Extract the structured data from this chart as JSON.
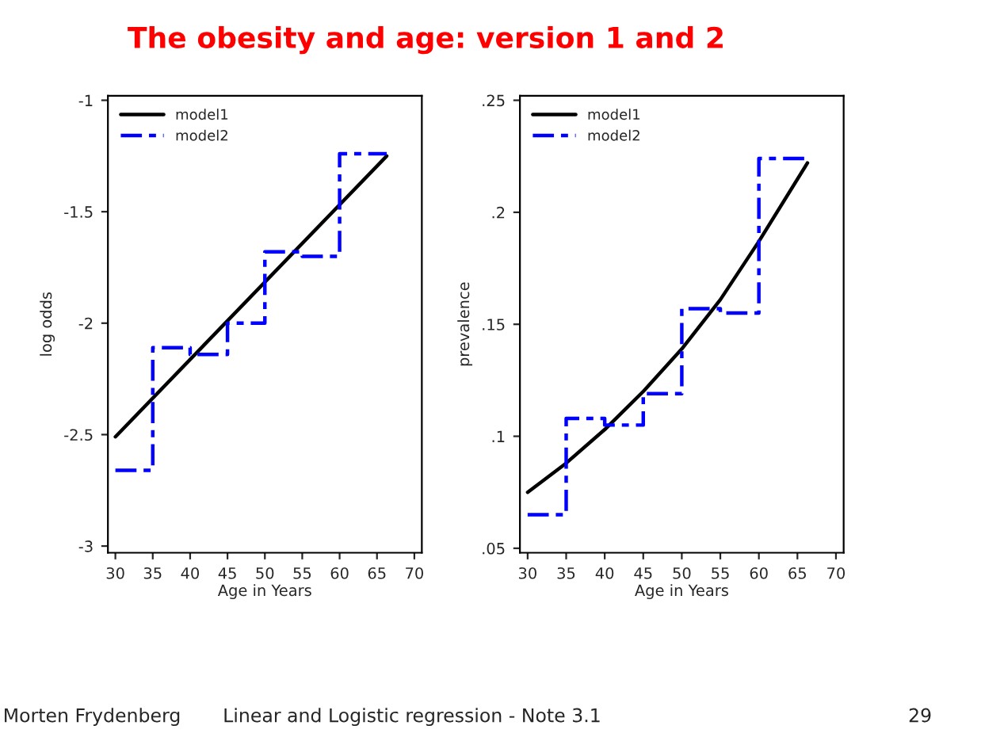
{
  "chart_data": [
    {
      "type": "line",
      "title": "The obesity and age: version 1 and 2",
      "xlabel": "Age in Years",
      "ylabel": "log odds",
      "xlim": [
        29,
        71
      ],
      "xticks": [
        30,
        35,
        40,
        45,
        50,
        55,
        60,
        65,
        70
      ],
      "ylim": [
        -3.03,
        -0.98
      ],
      "yticks": [
        -3,
        -2.5,
        -2,
        -1.5,
        -1
      ],
      "legend": "top left",
      "grid": false,
      "series": [
        {
          "name": "model1",
          "color": "#000000",
          "type": "line",
          "line_style": "solid",
          "x": [
            30,
            66.3
          ],
          "values": [
            -2.51,
            -1.25
          ]
        },
        {
          "name": "model2",
          "color": "#0000ff",
          "type": "step",
          "line_style": "dashed",
          "x": [
            30,
            35,
            40,
            45,
            50,
            55,
            60,
            66.3
          ],
          "values": [
            -2.66,
            -2.11,
            -2.14,
            -2.0,
            -1.68,
            -1.7,
            -1.24,
            -1.24
          ]
        }
      ]
    },
    {
      "type": "line",
      "xlabel": "Age in Years",
      "ylabel": "prevalence",
      "xlim": [
        29,
        71
      ],
      "xticks": [
        30,
        35,
        40,
        45,
        50,
        55,
        60,
        65,
        70
      ],
      "ylim": [
        0.048,
        0.252
      ],
      "yticks": [
        {
          "value": 0.05,
          "label": ".05"
        },
        {
          "value": 0.1,
          "label": ".1"
        },
        {
          "value": 0.15,
          "label": ".15"
        },
        {
          "value": 0.2,
          "label": ".2"
        },
        {
          "value": 0.25,
          "label": ".25"
        }
      ],
      "legend": "top left",
      "grid": false,
      "annotations": [
        "Morten Frydenberg",
        "Linear and Logistic regression - Note 3.1",
        "29"
      ],
      "series": [
        {
          "name": "model1",
          "color": "#000000",
          "type": "line",
          "line_style": "solid",
          "x": [
            30,
            35,
            40,
            45,
            50,
            55,
            60,
            66.3
          ],
          "values": [
            0.075,
            0.088,
            0.103,
            0.12,
            0.139,
            0.161,
            0.187,
            0.222
          ]
        },
        {
          "name": "model2",
          "color": "#0000ff",
          "type": "step",
          "line_style": "dashed",
          "x": [
            30,
            35,
            40,
            45,
            50,
            55,
            60,
            66.3
          ],
          "values": [
            0.065,
            0.108,
            0.105,
            0.119,
            0.157,
            0.155,
            0.224,
            0.224
          ]
        }
      ]
    }
  ]
}
